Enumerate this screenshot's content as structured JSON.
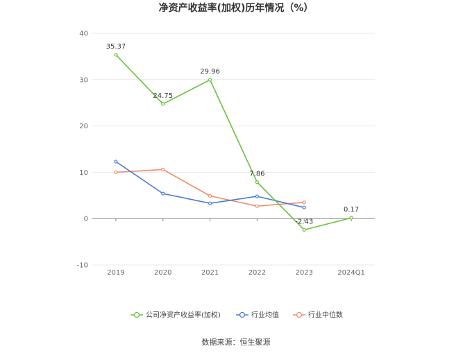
{
  "chart_data": {
    "type": "line",
    "title": "净资产收益率(加权)历年情况（%）",
    "categories": [
      "2019",
      "2020",
      "2021",
      "2022",
      "2023",
      "2024Q1"
    ],
    "ylim": [
      -10,
      40
    ],
    "yticks": [
      40,
      30,
      20,
      10,
      0,
      -10
    ],
    "grid": true,
    "legend_position": "bottom",
    "series": [
      {
        "name": "公司净资产收益率(加权)",
        "color": "#67c23a",
        "values": [
          35.37,
          24.75,
          29.96,
          7.86,
          -2.43,
          0.17
        ],
        "labels": [
          "35.37",
          "24.75",
          "29.96",
          "7.86",
          "-2.43",
          "0.17"
        ]
      },
      {
        "name": "行业均值",
        "color": "#4a7bd8",
        "values": [
          12.3,
          5.4,
          3.3,
          4.8,
          2.4,
          null
        ],
        "labels": []
      },
      {
        "name": "行业中位数",
        "color": "#f08c6a",
        "values": [
          10.0,
          10.6,
          4.9,
          2.7,
          3.5,
          null
        ],
        "labels": []
      }
    ]
  },
  "source_text": "数据来源：恒生聚源"
}
